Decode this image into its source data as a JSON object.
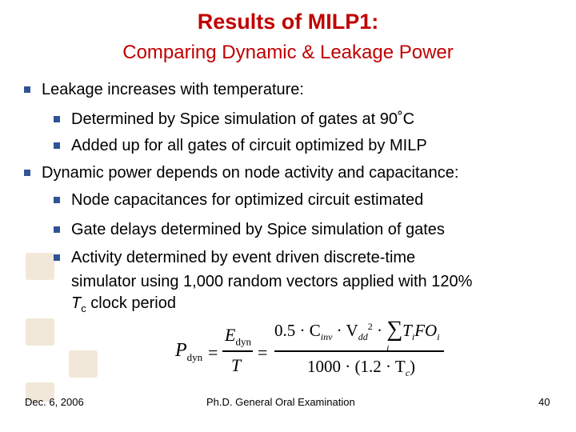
{
  "title": "Results of MILP1:",
  "subtitle": "Comparing Dynamic & Leakage Power",
  "bullets": {
    "b1": "Leakage increases with temperature:",
    "b1a": "Determined by Spice simulation of gates at 90˚C",
    "b1b": "Added up for all gates of circuit optimized by MILP",
    "b2": "Dynamic power depends on node activity and capacitance:",
    "b2a": "Node capacitances for optimized circuit estimated",
    "b2b": "Gate delays determined by Spice simulation of gates",
    "b2c_line1": "Activity determined by event driven discrete-time",
    "b2c_line2": "simulator using 1,000 random vectors applied with 120%",
    "b2c_tc_T": "T",
    "b2c_tc_sub": "c",
    "b2c_tc_rest": " clock period"
  },
  "equation": {
    "lhs_P": "P",
    "lhs_sub": "dyn",
    "eq1": "=",
    "num1_E": "E",
    "num1_sub": "dyn",
    "den1": "T",
    "eq2": "=",
    "num2": "0.5 · C",
    "num2_inv": "inv",
    "num2_dot": " · V",
    "num2_dd": "dd",
    "num2_sq": "2",
    "num2_dot2": " · ",
    "sigma": "∑",
    "sum_index": "i",
    "sum_term": "T",
    "sum_term_i": "i",
    "sum_fo": "FO",
    "sum_fo_i": "i",
    "den2": "1000 · (1.2 · T",
    "den2_c": "c",
    "den2_close": ")"
  },
  "footer": {
    "date": "Dec. 6, 2006",
    "center": "Ph.D. General Oral Examination",
    "page": "40"
  },
  "colors": {
    "title": "#c00000",
    "bullet": "#2f5496"
  }
}
